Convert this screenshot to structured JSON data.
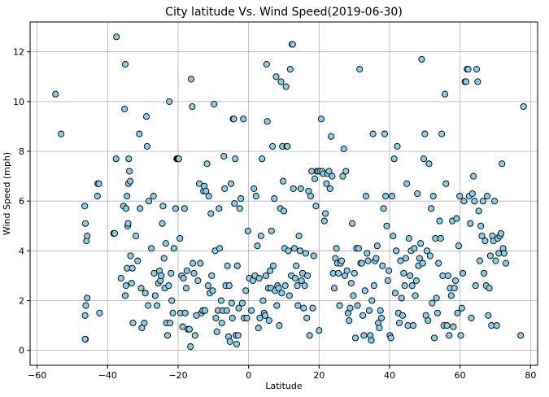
{
  "chart_data": {
    "type": "scatter",
    "title": "City latitude Vs. Wind Speed(2019-06-30)",
    "xlabel": "Latitude",
    "ylabel": "Wind Speed (mph)",
    "xlim": [
      -62,
      82
    ],
    "ylim": [
      -0.6,
      13.2
    ],
    "xticks": [
      -60,
      -40,
      -20,
      0,
      20,
      40,
      60,
      80
    ],
    "yticks": [
      0,
      2,
      4,
      6,
      8,
      10,
      12
    ],
    "grid": true,
    "marker_color": "#87CEEB",
    "marker_edge": "#000000",
    "grid_color": "#b0b0b0",
    "points": [
      [
        -54.8,
        10.3
      ],
      [
        -53.2,
        8.7
      ],
      [
        -46.5,
        5.8
      ],
      [
        -46.3,
        5.1
      ],
      [
        -46.0,
        4.4
      ],
      [
        -45.8,
        4.6
      ],
      [
        -46.2,
        1.8
      ],
      [
        -46.4,
        1.4
      ],
      [
        -45.8,
        2.1
      ],
      [
        -46.3,
        0.45
      ],
      [
        -46.4,
        0.45
      ],
      [
        -42.8,
        6.7
      ],
      [
        -42.5,
        6.7
      ],
      [
        -42.9,
        6.2
      ],
      [
        -42.3,
        1.5
      ],
      [
        -38.3,
        4.7
      ],
      [
        -38.0,
        4.7
      ],
      [
        -37.6,
        7.7
      ],
      [
        -37.5,
        12.6
      ],
      [
        -36.2,
        2.9
      ],
      [
        -35.5,
        5.8
      ],
      [
        -35.0,
        11.5
      ],
      [
        -35.2,
        9.7
      ],
      [
        -34.8,
        5.7
      ],
      [
        -34.5,
        6.2
      ],
      [
        -34.3,
        5.0
      ],
      [
        -34.2,
        5.1
      ],
      [
        -34.5,
        3.3
      ],
      [
        -34.8,
        2.6
      ],
      [
        -35.0,
        2.2
      ],
      [
        -34.0,
        7.7
      ],
      [
        -33.8,
        7.2
      ],
      [
        -34.1,
        6.7
      ],
      [
        -33.6,
        6.8
      ],
      [
        -33.5,
        3.8
      ],
      [
        -33.2,
        2.7
      ],
      [
        -33.0,
        3.3
      ],
      [
        -32.8,
        1.1
      ],
      [
        -32.0,
        4.6
      ],
      [
        -31.5,
        3.6
      ],
      [
        -31.0,
        8.7
      ],
      [
        -30.8,
        5.7
      ],
      [
        -30.5,
        2.5
      ],
      [
        -30.3,
        0.9
      ],
      [
        -29.6,
        1.1
      ],
      [
        -29.3,
        2.3
      ],
      [
        -29.0,
        9.4
      ],
      [
        -28.8,
        8.2
      ],
      [
        -28.5,
        1.8
      ],
      [
        -28.3,
        6.0
      ],
      [
        -27.6,
        4.1
      ],
      [
        -27.0,
        6.2
      ],
      [
        -26.8,
        3.1
      ],
      [
        -26.5,
        2.2
      ],
      [
        -26.0,
        1.8
      ],
      [
        -25.6,
        2.7
      ],
      [
        -25.3,
        3.2
      ],
      [
        -25.0,
        2.8
      ],
      [
        -24.8,
        3.0
      ],
      [
        -24.5,
        5.1
      ],
      [
        -24.3,
        5.8
      ],
      [
        -24.0,
        3.7
      ],
      [
        -23.8,
        2.5
      ],
      [
        -23.5,
        4.3
      ],
      [
        -23.3,
        1.1
      ],
      [
        -23.0,
        0.6
      ],
      [
        -22.7,
        2.6
      ],
      [
        -22.5,
        10.0
      ],
      [
        -22.3,
        1.1
      ],
      [
        -22.0,
        3.1
      ],
      [
        -21.8,
        2.0
      ],
      [
        -21.5,
        1.5
      ],
      [
        -21.2,
        4.1
      ],
      [
        -20.7,
        5.7
      ],
      [
        -20.4,
        7.7
      ],
      [
        -20.2,
        7.7
      ],
      [
        -20.0,
        7.7
      ],
      [
        -19.8,
        7.7
      ],
      [
        -19.5,
        4.5
      ],
      [
        -19.3,
        1.5
      ],
      [
        -19.0,
        3.0
      ],
      [
        -18.7,
        0.95
      ],
      [
        -18.5,
        2.9
      ],
      [
        -18.2,
        5.7
      ],
      [
        -18.0,
        1.5
      ],
      [
        -17.7,
        2.5
      ],
      [
        -17.5,
        3.2
      ],
      [
        -17.2,
        0.85
      ],
      [
        -16.8,
        0.85
      ],
      [
        -16.5,
        0.15
      ],
      [
        -16.3,
        10.9
      ],
      [
        -16.0,
        9.8
      ],
      [
        -15.8,
        3.5
      ],
      [
        -15.5,
        3.1
      ],
      [
        -15.2,
        0.6
      ],
      [
        -14.8,
        1.4
      ],
      [
        -14.4,
        2.8
      ],
      [
        -14.0,
        6.7
      ],
      [
        -13.7,
        3.5
      ],
      [
        -13.4,
        1.5
      ],
      [
        -13.0,
        1.6
      ],
      [
        -12.8,
        6.4
      ],
      [
        -12.6,
        6.6
      ],
      [
        -12.4,
        1.6
      ],
      [
        -12.1,
        6.4
      ],
      [
        -11.8,
        7.5
      ],
      [
        -11.5,
        2.6
      ],
      [
        -11.3,
        6.2
      ],
      [
        -11.0,
        2.3
      ],
      [
        -10.7,
        5.5
      ],
      [
        -10.5,
        3.0
      ],
      [
        -10.2,
        2.4
      ],
      [
        -9.8,
        9.9
      ],
      [
        -9.5,
        4.0
      ],
      [
        -9.3,
        1.3
      ],
      [
        -9.0,
        0.75
      ],
      [
        -8.7,
        1.6
      ],
      [
        -8.4,
        5.7
      ],
      [
        -8.2,
        4.1
      ],
      [
        -7.8,
        2.0
      ],
      [
        -7.6,
        1.1
      ],
      [
        -7.3,
        1.6
      ],
      [
        -7.0,
        7.8
      ],
      [
        -6.8,
        6.5
      ],
      [
        -6.5,
        2.6
      ],
      [
        -6.2,
        1.6
      ],
      [
        -6.0,
        3.4
      ],
      [
        -5.7,
        0.55
      ],
      [
        -5.5,
        2.6
      ],
      [
        -5.3,
        0.35
      ],
      [
        -5.0,
        6.7
      ],
      [
        -4.8,
        1.9
      ],
      [
        -4.6,
        1.3
      ],
      [
        -4.4,
        9.3
      ],
      [
        -4.2,
        9.3
      ],
      [
        -4.0,
        5.9
      ],
      [
        -3.8,
        7.7
      ],
      [
        -3.6,
        0.6
      ],
      [
        -3.4,
        0.25
      ],
      [
        -3.2,
        3.4
      ],
      [
        -3.0,
        0.6
      ],
      [
        -2.8,
        1.7
      ],
      [
        -2.5,
        5.7
      ],
      [
        -2.2,
        6.1
      ],
      [
        -1.8,
        1.9
      ],
      [
        -1.5,
        9.3
      ],
      [
        -1.3,
        1.3
      ],
      [
        -0.8,
        2.4
      ],
      [
        -0.5,
        1.3
      ],
      [
        -0.2,
        4.8
      ],
      [
        0.2,
        2.9
      ],
      [
        0.8,
        1.6
      ],
      [
        1.2,
        2.8
      ],
      [
        1.5,
        6.5
      ],
      [
        1.8,
        3.0
      ],
      [
        2.1,
        6.2
      ],
      [
        2.5,
        4.2
      ],
      [
        2.8,
        0.9
      ],
      [
        3.0,
        2.9
      ],
      [
        3.2,
        1.3
      ],
      [
        3.5,
        4.6
      ],
      [
        3.8,
        7.7
      ],
      [
        4.1,
        2.0
      ],
      [
        4.4,
        1.5
      ],
      [
        4.7,
        1.4
      ],
      [
        4.9,
        3.0
      ],
      [
        5.1,
        11.5
      ],
      [
        5.3,
        9.2
      ],
      [
        5.6,
        2.5
      ],
      [
        5.8,
        1.2
      ],
      [
        6.1,
        3.2
      ],
      [
        6.3,
        2.5
      ],
      [
        6.5,
        4.8
      ],
      [
        6.8,
        8.2
      ],
      [
        7.0,
        3.4
      ],
      [
        7.3,
        6.1
      ],
      [
        7.5,
        2.4
      ],
      [
        7.8,
        11.0
      ],
      [
        8.0,
        1.8
      ],
      [
        8.2,
        2.6
      ],
      [
        8.5,
        2.5
      ],
      [
        8.7,
        1.0
      ],
      [
        9.0,
        5.7
      ],
      [
        9.2,
        10.8
      ],
      [
        9.4,
        2.3
      ],
      [
        9.6,
        8.2
      ],
      [
        9.8,
        6.8
      ],
      [
        10.0,
        5.6
      ],
      [
        10.2,
        4.1
      ],
      [
        10.4,
        2.6
      ],
      [
        10.6,
        10.6
      ],
      [
        10.8,
        8.2
      ],
      [
        11.0,
        8.2
      ],
      [
        11.3,
        4.0
      ],
      [
        11.6,
        2.2
      ],
      [
        11.8,
        11.3
      ],
      [
        12.1,
        3.0
      ],
      [
        12.3,
        12.3
      ],
      [
        12.5,
        12.3
      ],
      [
        12.7,
        6.5
      ],
      [
        13.0,
        4.1
      ],
      [
        13.2,
        2.9
      ],
      [
        13.5,
        3.4
      ],
      [
        13.8,
        2.6
      ],
      [
        14.0,
        1.8
      ],
      [
        14.3,
        4.6
      ],
      [
        14.6,
        4.0
      ],
      [
        14.8,
        6.5
      ],
      [
        15.0,
        2.8
      ],
      [
        15.3,
        3.1
      ],
      [
        15.6,
        1.7
      ],
      [
        15.9,
        2.6
      ],
      [
        16.2,
        3.9
      ],
      [
        16.5,
        1.3
      ],
      [
        16.7,
        3.0
      ],
      [
        17.0,
        6.4
      ],
      [
        17.3,
        0.6
      ],
      [
        17.6,
        6.2
      ],
      [
        17.9,
        7.2
      ],
      [
        18.2,
        1.7
      ],
      [
        18.5,
        3.8
      ],
      [
        18.8,
        6.9
      ],
      [
        19.1,
        5.8
      ],
      [
        19.4,
        7.2
      ],
      [
        19.7,
        7.2
      ],
      [
        20.0,
        0.8
      ],
      [
        20.3,
        7.2
      ],
      [
        20.6,
        9.3
      ],
      [
        20.9,
        7.2
      ],
      [
        21.2,
        7.1
      ],
      [
        21.5,
        5.2
      ],
      [
        21.8,
        5.5
      ],
      [
        22.1,
        6.7
      ],
      [
        22.4,
        7.1
      ],
      [
        22.8,
        7.2
      ],
      [
        23.1,
        6.5
      ],
      [
        23.4,
        8.6
      ],
      [
        23.7,
        7.0
      ],
      [
        24.0,
        3.1
      ],
      [
        24.3,
        2.5
      ],
      [
        24.6,
        3.7
      ],
      [
        24.9,
        4.1
      ],
      [
        25.2,
        3.5
      ],
      [
        25.5,
        3.1
      ],
      [
        25.8,
        1.8
      ],
      [
        26.1,
        3.5
      ],
      [
        26.4,
        3.6
      ],
      [
        26.7,
        7.0
      ],
      [
        27.0,
        8.1
      ],
      [
        27.3,
        3.0
      ],
      [
        27.6,
        7.2
      ],
      [
        27.9,
        3.2
      ],
      [
        28.2,
        1.5
      ],
      [
        28.5,
        1.2
      ],
      [
        28.8,
        1.7
      ],
      [
        29.1,
        2.7
      ],
      [
        29.4,
        5.1
      ],
      [
        29.7,
        2.2
      ],
      [
        30.0,
        3.1
      ],
      [
        30.3,
        0.5
      ],
      [
        30.6,
        4.1
      ],
      [
        30.9,
        1.8
      ],
      [
        31.2,
        4.1
      ],
      [
        31.5,
        11.3
      ],
      [
        31.8,
        3.5
      ],
      [
        32.1,
        3.5
      ],
      [
        32.4,
        1.4
      ],
      [
        32.7,
        0.6
      ],
      [
        33.0,
        2.4
      ],
      [
        33.3,
        6.2
      ],
      [
        33.6,
        3.9
      ],
      [
        33.9,
        3.6
      ],
      [
        34.2,
        1.6
      ],
      [
        34.5,
        0.6
      ],
      [
        34.8,
        0.4
      ],
      [
        35.0,
        2.0
      ],
      [
        35.3,
        8.7
      ],
      [
        35.6,
        2.6
      ],
      [
        35.9,
        3.6
      ],
      [
        36.2,
        3.7
      ],
      [
        36.5,
        4.2
      ],
      [
        36.8,
        1.1
      ],
      [
        37.1,
        0.9
      ],
      [
        37.4,
        1.6
      ],
      [
        37.7,
        1.3
      ],
      [
        38.0,
        3.4
      ],
      [
        38.3,
        5.7
      ],
      [
        38.6,
        8.7
      ],
      [
        38.9,
        6.2
      ],
      [
        39.2,
        5.0
      ],
      [
        39.5,
        2.8
      ],
      [
        39.8,
        3.2
      ],
      [
        40.1,
        0.6
      ],
      [
        40.4,
        0.5
      ],
      [
        40.7,
        6.2
      ],
      [
        41.0,
        4.6
      ],
      [
        41.3,
        7.7
      ],
      [
        41.6,
        2.3
      ],
      [
        41.9,
        4.0
      ],
      [
        42.2,
        8.2
      ],
      [
        42.5,
        1.5
      ],
      [
        42.8,
        1.1
      ],
      [
        43.1,
        3.6
      ],
      [
        43.4,
        2.1
      ],
      [
        43.7,
        1.4
      ],
      [
        44.0,
        3.1
      ],
      [
        44.3,
        2.6
      ],
      [
        44.6,
        3.7
      ],
      [
        44.9,
        6.7
      ],
      [
        45.2,
        1.0
      ],
      [
        45.5,
        4.5
      ],
      [
        45.8,
        3.0
      ],
      [
        46.1,
        4.0
      ],
      [
        46.4,
        2.6
      ],
      [
        46.7,
        1.0
      ],
      [
        47.0,
        4.1
      ],
      [
        47.3,
        2.2
      ],
      [
        47.6,
        2.8
      ],
      [
        47.9,
        6.3
      ],
      [
        48.2,
        3.4
      ],
      [
        48.5,
        3.7
      ],
      [
        48.8,
        4.3
      ],
      [
        49.1,
        11.7
      ],
      [
        49.4,
        3.5
      ],
      [
        49.7,
        7.7
      ],
      [
        50.0,
        8.7
      ],
      [
        50.3,
        1.4
      ],
      [
        50.6,
        4.0
      ],
      [
        50.9,
        1.2
      ],
      [
        51.2,
        7.5
      ],
      [
        51.5,
        3.8
      ],
      [
        51.8,
        5.7
      ],
      [
        52.1,
        1.9
      ],
      [
        52.4,
        6.2
      ],
      [
        52.7,
        0.5
      ],
      [
        53.0,
        4.5
      ],
      [
        53.3,
        2.1
      ],
      [
        53.6,
        1.5
      ],
      [
        53.9,
        3.5
      ],
      [
        54.2,
        5.2
      ],
      [
        54.5,
        4.5
      ],
      [
        54.8,
        8.7
      ],
      [
        55.1,
        3.0
      ],
      [
        55.4,
        1.0
      ],
      [
        55.7,
        10.3
      ],
      [
        56.0,
        6.7
      ],
      [
        56.3,
        1.0
      ],
      [
        56.6,
        3.0
      ],
      [
        56.9,
        0.6
      ],
      [
        57.2,
        2.5
      ],
      [
        57.5,
        2.2
      ],
      [
        57.8,
        5.2
      ],
      [
        58.1,
        0.95
      ],
      [
        58.4,
        2.5
      ],
      [
        58.7,
        2.8
      ],
      [
        59.0,
        5.3
      ],
      [
        59.3,
        1.5
      ],
      [
        59.6,
        4.2
      ],
      [
        59.9,
        6.2
      ],
      [
        60.2,
        0.6
      ],
      [
        60.5,
        1.7
      ],
      [
        60.8,
        3.1
      ],
      [
        61.1,
        6.0
      ],
      [
        61.4,
        10.8
      ],
      [
        61.7,
        10.8
      ],
      [
        62.0,
        11.3
      ],
      [
        62.3,
        11.3
      ],
      [
        62.6,
        6.2
      ],
      [
        62.9,
        5.1
      ],
      [
        63.2,
        1.3
      ],
      [
        63.5,
        6.3
      ],
      [
        63.8,
        7.0
      ],
      [
        64.1,
        6.0
      ],
      [
        64.4,
        2.6
      ],
      [
        64.7,
        11.3
      ],
      [
        65.0,
        10.8
      ],
      [
        65.3,
        5.6
      ],
      [
        65.6,
        3.6
      ],
      [
        65.9,
        5.0
      ],
      [
        66.2,
        4.6
      ],
      [
        66.5,
        6.0
      ],
      [
        66.8,
        3.1
      ],
      [
        67.1,
        4.4
      ],
      [
        67.4,
        2.6
      ],
      [
        67.7,
        6.2
      ],
      [
        68.0,
        1.4
      ],
      [
        68.3,
        2.5
      ],
      [
        68.6,
        3.8
      ],
      [
        68.9,
        1.0
      ],
      [
        69.2,
        4.6
      ],
      [
        69.5,
        4.4
      ],
      [
        69.8,
        6.0
      ],
      [
        70.1,
        3.6
      ],
      [
        70.4,
        1.0
      ],
      [
        70.7,
        4.5
      ],
      [
        71.0,
        3.9
      ],
      [
        71.3,
        4.6
      ],
      [
        71.6,
        4.7
      ],
      [
        71.9,
        7.5
      ],
      [
        72.2,
        4.1
      ],
      [
        72.5,
        3.9
      ],
      [
        73.0,
        3.5
      ],
      [
        77.2,
        0.6
      ],
      [
        78.0,
        9.8
      ]
    ]
  }
}
